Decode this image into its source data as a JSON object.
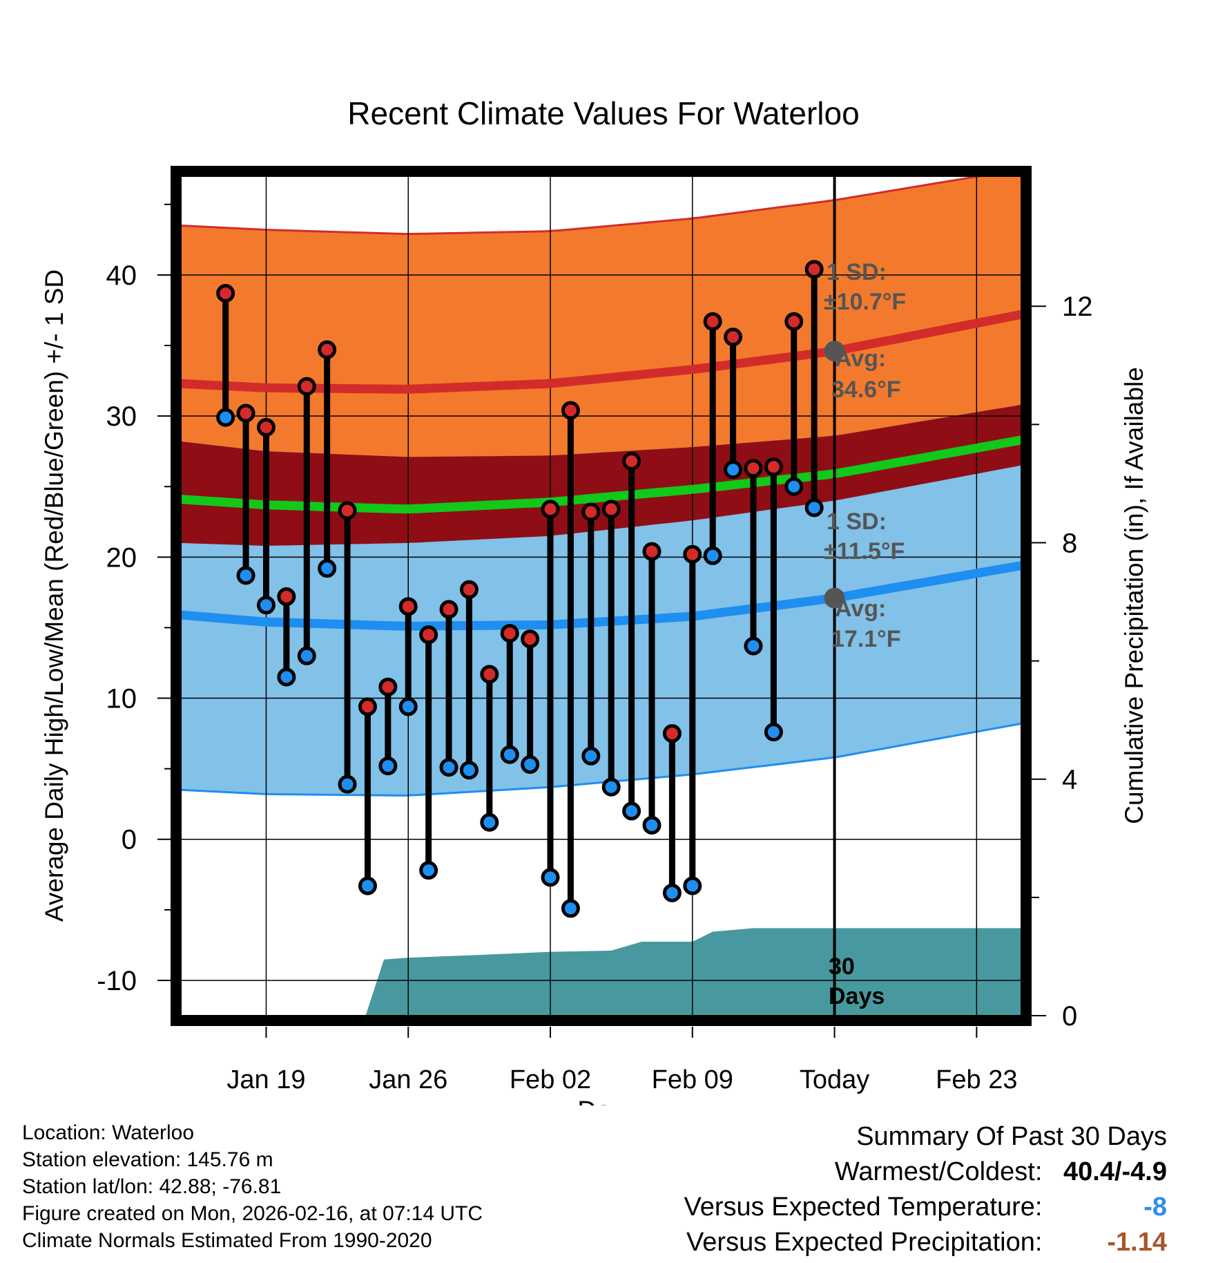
{
  "chart_data": {
    "type": "line",
    "title": "Recent Climate Values For Waterloo",
    "xlabel": "Day",
    "ylabel": "Average Daily High/Low/Mean (Red/Blue/Green) +/- 1 SD",
    "y2label": "Cumulative Precipitation (in), If Available",
    "xlim": [
      -4.2,
      37.2
    ],
    "ylim": [
      -12.5,
      47
    ],
    "y2lim": [
      0,
      14.2
    ],
    "grid": true,
    "x_ticks": [
      {
        "x": 0,
        "label": "Jan 19"
      },
      {
        "x": 7,
        "label": "Jan 26"
      },
      {
        "x": 14,
        "label": "Feb 02"
      },
      {
        "x": 21,
        "label": "Feb 09"
      },
      {
        "x": 28,
        "label": "Today"
      },
      {
        "x": 35,
        "label": "Feb 23"
      }
    ],
    "y_ticks": [
      {
        "y": -10,
        "label": "-10"
      },
      {
        "y": 0,
        "label": "0"
      },
      {
        "y": 10,
        "label": "10"
      },
      {
        "y": 20,
        "label": "20"
      },
      {
        "y": 30,
        "label": "30"
      },
      {
        "y": 40,
        "label": "40"
      }
    ],
    "y2_ticks": [
      {
        "y": 0,
        "label": "0"
      },
      {
        "y": 4,
        "label": "4"
      },
      {
        "y": 8,
        "label": "8"
      },
      {
        "y": 12,
        "label": "12"
      }
    ],
    "today_x": 28,
    "normals": {
      "x": [
        -4.2,
        0,
        7,
        14,
        21,
        28,
        37.2
      ],
      "high_upper": [
        43.5,
        43.2,
        42.9,
        43.1,
        44,
        45.3,
        47.5
      ],
      "high_mean": [
        32.3,
        32,
        31.9,
        32.3,
        33.3,
        34.6,
        37.2
      ],
      "high_lower": [
        21,
        20.8,
        21,
        21.5,
        22.6,
        24,
        26.5
      ],
      "mean_mean": [
        24.1,
        23.7,
        23.4,
        23.9,
        24.8,
        25.9,
        28.3
      ],
      "low_upper": [
        28.2,
        27.5,
        27.1,
        27.2,
        27.8,
        28.6,
        30.8
      ],
      "low_mean": [
        15.9,
        15.4,
        15.1,
        15.2,
        15.8,
        17.1,
        19.4
      ],
      "low_lower": [
        3.5,
        3.2,
        3.1,
        3.7,
        4.6,
        5.8,
        8.2
      ]
    },
    "series": [
      {
        "name": "High",
        "color": "#d42a2a",
        "x": [
          -2,
          -1,
          0,
          1,
          2,
          3,
          4,
          5,
          6,
          7,
          8,
          9,
          10,
          11,
          12,
          13,
          14,
          15,
          16,
          17,
          18,
          19,
          20,
          21,
          22,
          23,
          24,
          25,
          26,
          27
        ],
        "values": [
          38.7,
          30.2,
          29.2,
          17.2,
          32.1,
          34.7,
          23.3,
          9.4,
          10.8,
          16.5,
          14.5,
          16.3,
          17.7,
          11.7,
          14.6,
          14.2,
          23.4,
          30.4,
          23.2,
          23.4,
          26.8,
          20.4,
          7.5,
          20.2,
          36.7,
          35.6,
          26.3,
          26.4,
          36.7,
          40.4
        ]
      },
      {
        "name": "Low",
        "color": "#1e8ef0",
        "x": [
          -2,
          -1,
          0,
          1,
          2,
          3,
          4,
          5,
          6,
          7,
          8,
          9,
          10,
          11,
          12,
          13,
          14,
          15,
          16,
          17,
          18,
          19,
          20,
          21,
          22,
          23,
          24,
          25,
          26,
          27
        ],
        "values": [
          29.9,
          18.7,
          16.6,
          11.5,
          13,
          19.2,
          3.9,
          -3.3,
          5.2,
          9.4,
          -2.2,
          5.1,
          4.9,
          1.2,
          6,
          5.3,
          -2.7,
          -4.9,
          5.9,
          3.7,
          2,
          1,
          -3.8,
          -3.3,
          20.1,
          26.2,
          13.7,
          7.6,
          25,
          23.5
        ]
      }
    ],
    "precipitation": {
      "x": [
        4.9,
        5.8,
        7,
        10,
        14,
        17,
        18.5,
        21,
        22,
        24,
        37.2
      ],
      "values": [
        0,
        0.95,
        0.98,
        1.02,
        1.08,
        1.1,
        1.25,
        1.25,
        1.42,
        1.48,
        1.48
      ]
    },
    "annotations": {
      "high_sd_label": "1 SD:",
      "high_sd_value": "±10.7°F",
      "high_avg_label": "Avg:",
      "high_avg_value": "34.6°F",
      "low_sd_label": "1 SD:",
      "low_sd_value": "±11.5°F",
      "low_avg_label": "Avg:",
      "low_avg_value": "17.1°F",
      "days_label_1": "30",
      "days_label_2": "Days"
    },
    "colors": {
      "high_band": "#f37a2d",
      "high_line": "#d22c2a",
      "overlap_band": "#8f0e16",
      "mean_line": "#12c81a",
      "low_band": "#82c1e8",
      "low_line": "#1e8ef0",
      "precip": "#47999f",
      "marker_edge": "#000000",
      "annotation": "#555555"
    }
  },
  "info": {
    "location": "Location: Waterloo",
    "elevation": "Station elevation: 145.76 m",
    "latlon": "Station lat/lon: 42.88; -76.81",
    "created": "Figure created on Mon, 2026-02-16, at 07:14 UTC",
    "normals": "Climate Normals Estimated From 1990-2020"
  },
  "summary": {
    "title": "Summary Of Past 30 Days",
    "warmest_label": "Warmest/Coldest:",
    "warmest_value": "40.4/-4.9",
    "temp_label": "Versus Expected Temperature:",
    "temp_value": "-8",
    "temp_color": "#2a8ef0",
    "precip_label": "Versus Expected Precipitation:",
    "precip_value": "-1.14",
    "precip_color": "#a8562a"
  }
}
